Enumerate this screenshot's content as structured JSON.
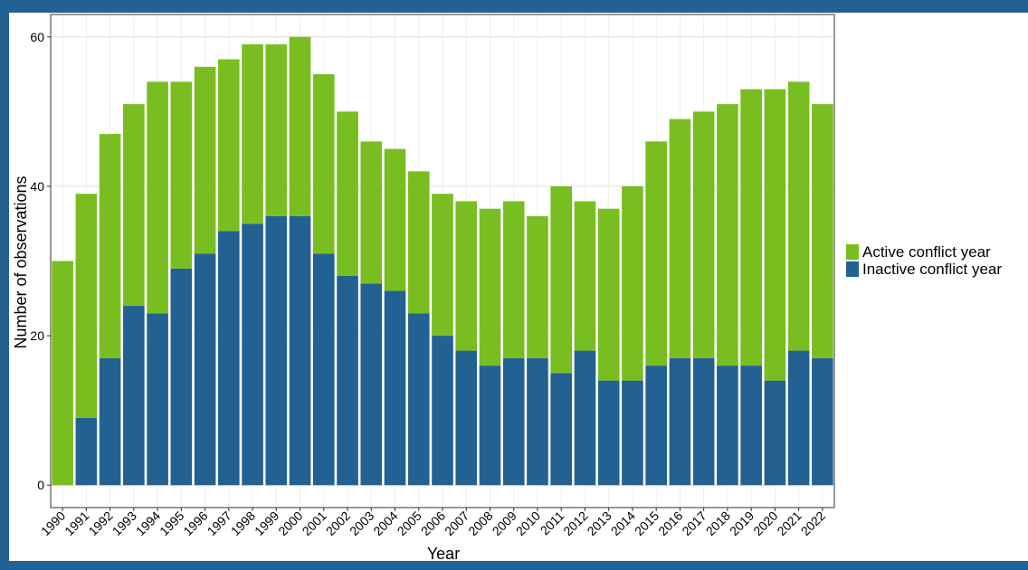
{
  "chart_data": {
    "type": "stacked_bar",
    "x_label": "Year",
    "y_label": "Number of observations",
    "categories": [
      "1990",
      "1991",
      "1992",
      "1993",
      "1994",
      "1995",
      "1996",
      "1997",
      "1998",
      "1999",
      "2000",
      "2001",
      "2002",
      "2003",
      "2004",
      "2005",
      "2006",
      "2007",
      "2008",
      "2009",
      "2010",
      "2011",
      "2012",
      "2013",
      "2014",
      "2015",
      "2016",
      "2017",
      "2018",
      "2019",
      "2020",
      "2021",
      "2022"
    ],
    "series": [
      {
        "name": "Active conflict year",
        "color": "#78be20",
        "values": [
          30,
          30,
          30,
          27,
          31,
          25,
          25,
          23,
          24,
          23,
          24,
          24,
          22,
          19,
          19,
          19,
          19,
          20,
          21,
          21,
          19,
          25,
          20,
          23,
          26,
          30,
          32,
          33,
          35,
          37,
          39,
          36,
          34
        ]
      },
      {
        "name": "Inactive conflict year",
        "color": "#236192",
        "values": [
          0,
          9,
          17,
          24,
          23,
          29,
          31,
          34,
          35,
          36,
          36,
          31,
          28,
          27,
          26,
          23,
          20,
          18,
          16,
          17,
          17,
          15,
          18,
          14,
          14,
          16,
          17,
          17,
          16,
          16,
          14,
          18,
          17
        ]
      }
    ],
    "ylim": [
      -3,
      63
    ],
    "yticks": [
      0,
      20,
      40,
      60
    ],
    "grid": true,
    "legend": "right"
  }
}
